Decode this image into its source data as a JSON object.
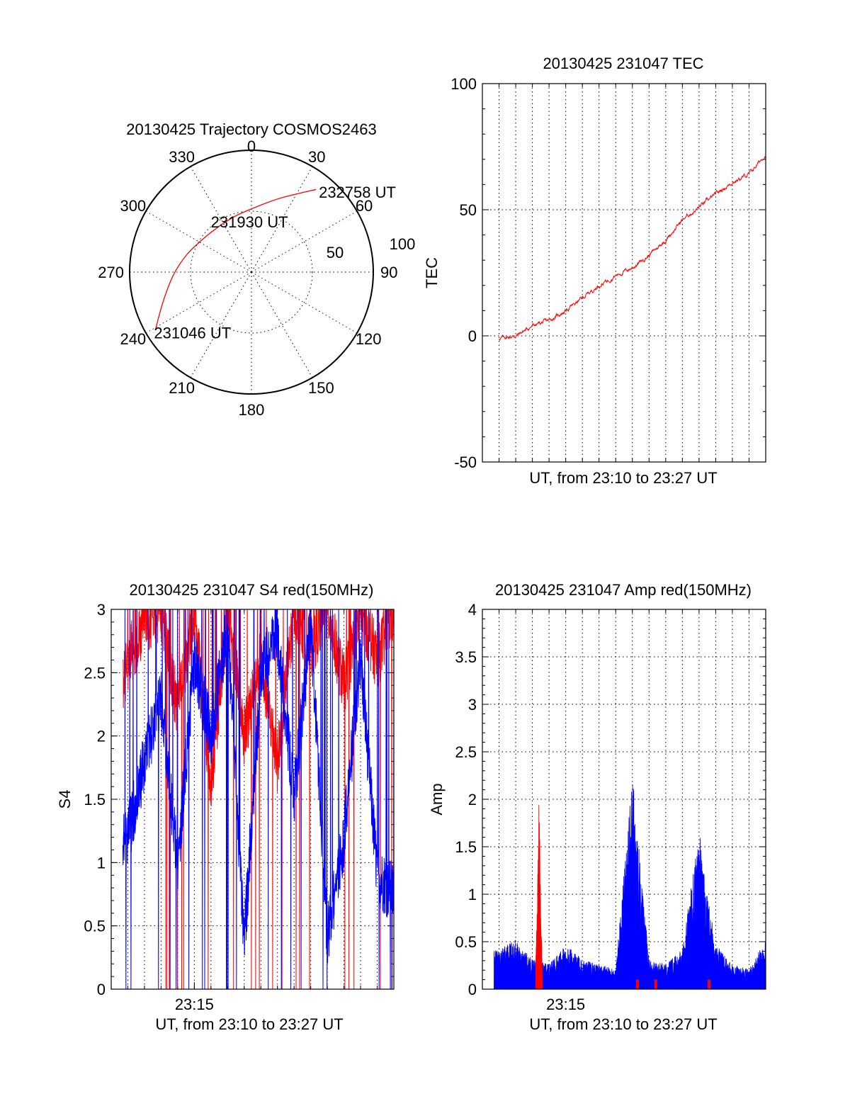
{
  "colors": {
    "red": "#ff0000",
    "blue": "#0000ff",
    "black": "#000000"
  },
  "chart_data": [
    {
      "type": "polar",
      "title": "20130425 Trajectory COSMOS2463",
      "angle_labels": [
        "0",
        "30",
        "60",
        "90",
        "120",
        "150",
        "180",
        "210",
        "240",
        "270",
        "300",
        "330"
      ],
      "radius_labels": [
        "50",
        "100"
      ],
      "rmax": 100,
      "grid": true,
      "trajectory_series": {
        "color": "red",
        "points": [
          {
            "az": 239,
            "r": 92
          },
          {
            "az": 252,
            "r": 76
          },
          {
            "az": 268,
            "r": 64
          },
          {
            "az": 285,
            "r": 55
          },
          {
            "az": 305,
            "r": 48
          },
          {
            "az": 325,
            "r": 46
          },
          {
            "az": 345,
            "r": 48
          },
          {
            "az": 5,
            "r": 54
          },
          {
            "az": 20,
            "r": 64
          },
          {
            "az": 30,
            "r": 74
          },
          {
            "az": 38,
            "r": 86
          }
        ]
      },
      "annotations": [
        {
          "text": "232758 UT",
          "az": 39,
          "r": 86,
          "anchor": "start"
        },
        {
          "text": "231930 UT",
          "az": 355,
          "r": 46,
          "anchor": "middle"
        },
        {
          "text": "231046 UT",
          "az": 239,
          "r": 92,
          "anchor": "start"
        }
      ]
    },
    {
      "type": "line",
      "title": "20130425 231047 TEC",
      "xlabel": "UT, from 23:10 to 23:27 UT",
      "ylabel": "TEC",
      "xlim": [
        "23:10",
        "23:27"
      ],
      "ylim": [
        -50,
        100
      ],
      "yticks": [
        "-50",
        "0",
        "50",
        "100"
      ],
      "grid": true,
      "series": [
        {
          "color": "red",
          "x": [
            "23:11",
            "23:12",
            "23:13",
            "23:14",
            "23:15",
            "23:16",
            "23:17",
            "23:18",
            "23:19",
            "23:20",
            "23:21",
            "23:22",
            "23:23",
            "23:24",
            "23:25",
            "23:26",
            "23:27"
          ],
          "values": [
            -1,
            0,
            4,
            6,
            10,
            15,
            20,
            24,
            27,
            32,
            38,
            46,
            51,
            56,
            61,
            64,
            72
          ]
        }
      ]
    },
    {
      "type": "line",
      "title": "20130425 231047 S4 red(150MHz)",
      "xlabel": "UT, from 23:10 to 23:27 UT",
      "ylabel": "S4",
      "xlim": [
        "23:10",
        "23:27"
      ],
      "ylim": [
        0,
        3
      ],
      "yticks": [
        "0",
        "0.5",
        "1",
        "1.5",
        "2",
        "2.5",
        "3"
      ],
      "xticks": [
        "23:15"
      ],
      "grid": true,
      "series": [
        {
          "color": "red",
          "x": [
            "23:10",
            "23:11",
            "23:12",
            "23:13",
            "23:14",
            "23:15",
            "23:16",
            "23:17",
            "23:18",
            "23:19",
            "23:20",
            "23:21",
            "23:22",
            "23:23",
            "23:24",
            "23:25",
            "23:26",
            "23:27"
          ],
          "values": [
            2.0,
            2.6,
            2.9,
            3.0,
            2.2,
            3.0,
            1.6,
            3.0,
            2.0,
            2.6,
            1.8,
            3.0,
            2.7,
            3.0,
            2.4,
            3.0,
            2.6,
            3.0
          ]
        },
        {
          "color": "blue",
          "x": [
            "23:10",
            "23:11",
            "23:12",
            "23:13",
            "23:14",
            "23:15",
            "23:16",
            "23:17",
            "23:18",
            "23:19",
            "23:20",
            "23:21",
            "23:22",
            "23:23",
            "23:24",
            "23:25",
            "23:26",
            "23:27"
          ],
          "values": [
            1.1,
            1.2,
            1.8,
            2.3,
            1.0,
            2.6,
            2.0,
            2.9,
            0.35,
            2.5,
            2.8,
            1.5,
            2.9,
            0.4,
            1.2,
            2.6,
            0.9,
            0.75
          ]
        }
      ]
    },
    {
      "type": "area",
      "title": "20130425 231047 Amp red(150MHz)",
      "xlabel": "UT, from 23:10 to 23:27 UT",
      "ylabel": "Amp",
      "xlim": [
        "23:10",
        "23:27"
      ],
      "ylim": [
        0,
        4
      ],
      "yticks": [
        "0",
        "0.5",
        "1",
        "1.5",
        "2",
        "2.5",
        "3",
        "3.5",
        "4"
      ],
      "xticks": [
        "23:15"
      ],
      "grid": true,
      "series": [
        {
          "color": "blue",
          "x": [
            "23:10",
            "23:11",
            "23:12",
            "23:13",
            "23:14",
            "23:15",
            "23:16",
            "23:17",
            "23:18",
            "23:19",
            "23:20",
            "23:21",
            "23:22",
            "23:23",
            "23:24",
            "23:25",
            "23:26",
            "23:27"
          ],
          "values": [
            0.35,
            0.4,
            0.5,
            0.3,
            0.25,
            0.45,
            0.3,
            0.25,
            0.2,
            2.15,
            0.3,
            0.25,
            0.4,
            1.6,
            0.45,
            0.25,
            0.2,
            0.5
          ]
        },
        {
          "color": "red",
          "x": [
            "23:13.2",
            "23:13.3",
            "23:13.4",
            "23:13.5",
            "23:13.6"
          ],
          "values": [
            0.3,
            0.9,
            2.1,
            0.8,
            0.2
          ]
        }
      ]
    }
  ]
}
